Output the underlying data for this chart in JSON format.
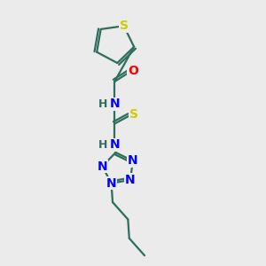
{
  "bg_color": "#ebebeb",
  "bond_color": "#2d6e5e",
  "bond_width": 1.6,
  "atom_colors": {
    "S": "#cccc00",
    "O": "#ff0000",
    "N": "#0000ff",
    "H": "#2d6e5e",
    "C": "#2d6e5e"
  },
  "font_size": 10,
  "fig_size": [
    3.0,
    3.0
  ],
  "dpi": 100
}
